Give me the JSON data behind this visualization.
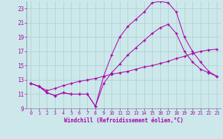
{
  "xlabel": "Windchill (Refroidissement éolien,°C)",
  "bg_color": "#cce8ea",
  "grid_color": "#aacdd0",
  "line_color": "#aa00aa",
  "xlim": [
    -0.5,
    23.5
  ],
  "ylim": [
    9,
    24
  ],
  "xticks": [
    0,
    1,
    2,
    3,
    4,
    5,
    6,
    7,
    8,
    9,
    10,
    11,
    12,
    13,
    14,
    15,
    16,
    17,
    18,
    19,
    20,
    21,
    22,
    23
  ],
  "yticks": [
    9,
    11,
    13,
    15,
    17,
    19,
    21,
    23
  ],
  "line1_x": [
    0,
    1,
    2,
    3,
    4,
    5,
    6,
    7,
    8,
    9,
    10,
    11,
    12,
    13,
    14,
    15,
    16,
    17,
    18,
    19,
    20,
    21,
    22,
    23
  ],
  "line1_y": [
    12.5,
    12.1,
    11.2,
    10.8,
    11.2,
    11.0,
    11.0,
    11.0,
    9.3,
    12.5,
    14.0,
    15.2,
    16.5,
    17.5,
    18.5,
    19.5,
    20.3,
    20.8,
    19.5,
    17.0,
    15.5,
    14.5,
    14.0,
    13.5
  ],
  "line2_x": [
    0,
    1,
    2,
    3,
    4,
    5,
    6,
    7,
    8,
    9,
    10,
    11,
    12,
    13,
    14,
    15,
    16,
    17,
    18,
    19,
    20,
    21,
    22,
    23
  ],
  "line2_y": [
    12.5,
    12.1,
    11.2,
    10.8,
    11.2,
    11.0,
    11.0,
    11.0,
    9.3,
    13.5,
    16.5,
    19.0,
    20.5,
    21.5,
    22.5,
    23.8,
    24.0,
    23.8,
    22.5,
    19.0,
    17.0,
    15.5,
    14.2,
    13.5
  ],
  "line3_x": [
    0,
    1,
    2,
    3,
    4,
    5,
    6,
    7,
    8,
    9,
    10,
    11,
    12,
    13,
    14,
    15,
    16,
    17,
    18,
    19,
    20,
    21,
    22,
    23
  ],
  "line3_y": [
    12.5,
    12.1,
    11.5,
    11.8,
    12.2,
    12.5,
    12.8,
    13.0,
    13.2,
    13.5,
    13.8,
    14.0,
    14.2,
    14.5,
    14.8,
    15.0,
    15.3,
    15.6,
    16.0,
    16.3,
    16.7,
    17.0,
    17.2,
    17.3
  ]
}
